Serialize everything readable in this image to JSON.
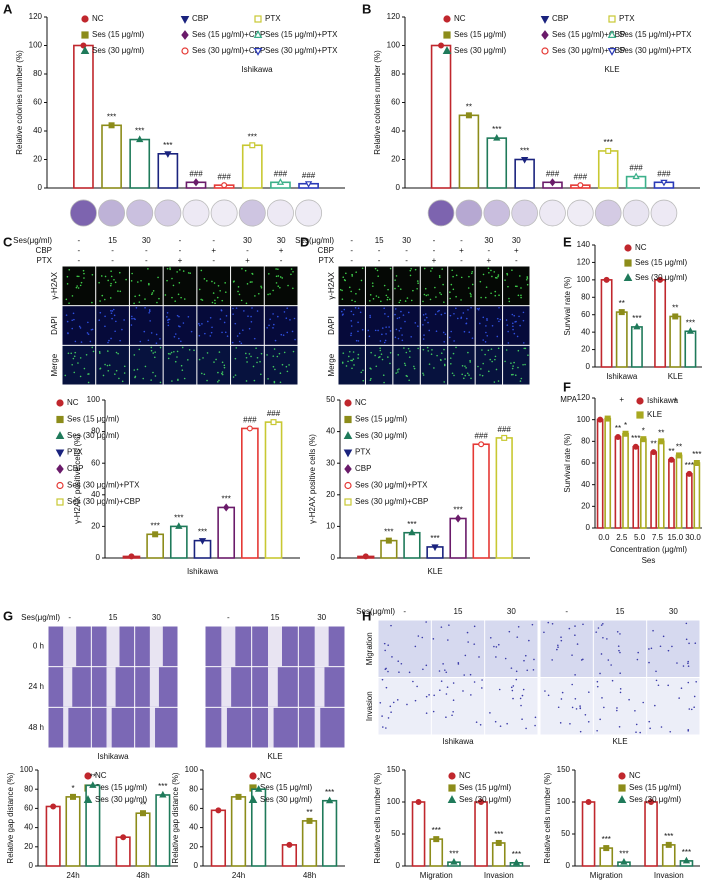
{
  "figure": {
    "panel_labels": [
      "A",
      "B",
      "C",
      "D",
      "E",
      "F",
      "G",
      "H"
    ],
    "images": [
      {
        "header_rows": [
          {
            "label": "Ses(μg/ml)",
            "values": [
              "-",
              "15",
              "30",
              "-",
              "-",
              "30",
              "30"
            ]
          },
          {
            "label": "CBP",
            "values": [
              "-",
              "-",
              "-",
              "-",
              "+",
              "-",
              "+"
            ]
          },
          {
            "label": "PTX",
            "values": [
              "-",
              "-",
              "-",
              "+",
              "-",
              "+",
              "-"
            ]
          }
        ],
        "row_labels": [
          "γ-H2AX",
          "DAPI",
          "Merge"
        ]
      },
      {
        "header_rows": [
          {
            "label": "Ses(μg/ml)",
            "values": [
              "-",
              "15",
              "30",
              "-",
              "-",
              "30",
              "30"
            ]
          },
          {
            "label": "CBP",
            "values": [
              "-",
              "-",
              "-",
              "-",
              "+",
              "-",
              "+"
            ]
          },
          {
            "label": "PTX",
            "values": [
              "-",
              "-",
              "-",
              "+",
              "-",
              "+",
              "-"
            ]
          }
        ],
        "row_labels": [
          "γ-H2AX",
          "DAPI",
          "Merge"
        ]
      },
      {
        "header_rows": [
          {
            "label": "Ses(μg/ml)",
            "values": [
              "-",
              "15",
              "30",
              "-",
              "15",
              "30"
            ]
          }
        ],
        "row_labels": [
          "0 h",
          "24 h",
          "48 h"
        ],
        "group_labels": [
          "Ishikawa",
          "KLE"
        ]
      },
      {
        "header_rows": [
          {
            "label": "Ses(μg/ml)",
            "values": [
              "-",
              "15",
              "30",
              "-",
              "15",
              "30"
            ]
          }
        ],
        "row_labels": [
          "Migration",
          "Invasion"
        ],
        "group_labels": [
          "Ishikawa",
          "KLE"
        ]
      }
    ]
  },
  "chart_data": [
    {
      "type": "bar",
      "ylabel": "Relative colonies number (%)",
      "subtitle": "Ishikawa",
      "ylim": [
        0,
        120
      ],
      "yticks": [
        0,
        20,
        40,
        60,
        80,
        100,
        120
      ],
      "series": [
        {
          "name": "NC",
          "color": "#c0272d",
          "marker": "circle",
          "values": [
            100
          ],
          "sig": [
            null
          ]
        },
        {
          "name": "Ses (15 μg/ml)",
          "color": "#8c8c1a",
          "marker": "square",
          "values": [
            44
          ],
          "sig": [
            "***"
          ]
        },
        {
          "name": "Ses (30 μg/ml)",
          "color": "#1f7a5a",
          "marker": "triangle",
          "values": [
            34
          ],
          "sig": [
            "***"
          ]
        },
        {
          "name": "CBP",
          "color": "#1a237e",
          "marker": "triangle-down",
          "values": [
            24
          ],
          "sig": [
            "***"
          ]
        },
        {
          "name": "Ses (15 μg/ml)+CBP",
          "color": "#6a1b6a",
          "marker": "diamond",
          "values": [
            4
          ],
          "sig": [
            "###"
          ]
        },
        {
          "name": "Ses (30 μg/ml)+CBP",
          "color": "#e53935",
          "marker": "open-circle",
          "values": [
            2
          ],
          "sig": [
            "###"
          ]
        },
        {
          "name": "PTX",
          "color": "#c8c832",
          "marker": "open-square",
          "values": [
            30
          ],
          "sig": [
            "***"
          ]
        },
        {
          "name": "Ses (15 μg/ml)+PTX",
          "color": "#3cb08a",
          "marker": "open-triangle",
          "values": [
            4
          ],
          "sig": [
            "###"
          ]
        },
        {
          "name": "Ses (30 μg/ml)+PTX",
          "color": "#2a3ab8",
          "marker": "open-triangle-down",
          "values": [
            3
          ],
          "sig": [
            "###"
          ]
        }
      ]
    },
    {
      "type": "bar",
      "ylabel": "Relative colonies number (%)",
      "subtitle": "KLE",
      "ylim": [
        0,
        120
      ],
      "yticks": [
        0,
        20,
        40,
        60,
        80,
        100,
        120
      ],
      "series": [
        {
          "name": "NC",
          "color": "#c0272d",
          "marker": "circle",
          "values": [
            100
          ],
          "sig": [
            null
          ]
        },
        {
          "name": "Ses (15 μg/ml)",
          "color": "#8c8c1a",
          "marker": "square",
          "values": [
            51
          ],
          "sig": [
            "**"
          ]
        },
        {
          "name": "Ses (30 μg/ml)",
          "color": "#1f7a5a",
          "marker": "triangle",
          "values": [
            35
          ],
          "sig": [
            "***"
          ]
        },
        {
          "name": "CBP",
          "color": "#1a237e",
          "marker": "triangle-down",
          "values": [
            20
          ],
          "sig": [
            "***"
          ]
        },
        {
          "name": "Ses (15 μg/ml)+CBP",
          "color": "#6a1b6a",
          "marker": "diamond",
          "values": [
            4
          ],
          "sig": [
            "###"
          ]
        },
        {
          "name": "Ses (30 μg/ml)+CBP",
          "color": "#e53935",
          "marker": "open-circle",
          "values": [
            2
          ],
          "sig": [
            "###"
          ]
        },
        {
          "name": "PTX",
          "color": "#c8c832",
          "marker": "open-square",
          "values": [
            26
          ],
          "sig": [
            "***"
          ]
        },
        {
          "name": "Ses (15 μg/ml)+PTX",
          "color": "#3cb08a",
          "marker": "open-triangle",
          "values": [
            8
          ],
          "sig": [
            "###"
          ]
        },
        {
          "name": "Ses (30 μg/ml)+PTX",
          "color": "#2a3ab8",
          "marker": "open-triangle-down",
          "values": [
            4
          ],
          "sig": [
            "###"
          ]
        }
      ]
    },
    {
      "type": "bar",
      "ylabel": "γ-H2AX positive cells (%)",
      "xlabel": "Ishikawa",
      "ylim": [
        0,
        100
      ],
      "yticks": [
        0,
        20,
        40,
        60,
        80,
        100
      ],
      "series": [
        {
          "name": "NC",
          "color": "#c0272d",
          "marker": "circle",
          "values": [
            1
          ],
          "sig": [
            null
          ]
        },
        {
          "name": "Ses (15 μg/ml)",
          "color": "#8c8c1a",
          "marker": "square",
          "values": [
            15
          ],
          "sig": [
            "***"
          ]
        },
        {
          "name": "Ses (30 μg/ml)",
          "color": "#1f7a5a",
          "marker": "triangle",
          "values": [
            20
          ],
          "sig": [
            "***"
          ]
        },
        {
          "name": "PTX",
          "color": "#1a237e",
          "marker": "triangle-down",
          "values": [
            11
          ],
          "sig": [
            "***"
          ]
        },
        {
          "name": "CBP",
          "color": "#6a1b6a",
          "marker": "diamond",
          "values": [
            32
          ],
          "sig": [
            "***"
          ]
        },
        {
          "name": "Ses (30 μg/ml)+PTX",
          "color": "#e53935",
          "marker": "open-circle",
          "values": [
            82
          ],
          "sig": [
            "###"
          ]
        },
        {
          "name": "Ses (30 μg/ml)+CBP",
          "color": "#c8c832",
          "marker": "open-square",
          "values": [
            86
          ],
          "sig": [
            "###"
          ]
        }
      ]
    },
    {
      "type": "bar",
      "ylabel": "γ-H2AX positive cells (%)",
      "xlabel": "KLE",
      "ylim": [
        0,
        50
      ],
      "yticks": [
        0,
        10,
        20,
        30,
        40,
        50
      ],
      "series": [
        {
          "name": "NC",
          "color": "#c0272d",
          "marker": "circle",
          "values": [
            0.5
          ],
          "sig": [
            null
          ]
        },
        {
          "name": "Ses (15 μg/ml)",
          "color": "#8c8c1a",
          "marker": "square",
          "values": [
            5.5
          ],
          "sig": [
            "***"
          ]
        },
        {
          "name": "Ses (30 μg/ml)",
          "color": "#1f7a5a",
          "marker": "triangle",
          "values": [
            8
          ],
          "sig": [
            "***"
          ]
        },
        {
          "name": "PTX",
          "color": "#1a237e",
          "marker": "triangle-down",
          "values": [
            3.5
          ],
          "sig": [
            "***"
          ]
        },
        {
          "name": "CBP",
          "color": "#6a1b6a",
          "marker": "diamond",
          "values": [
            12.5
          ],
          "sig": [
            "***"
          ]
        },
        {
          "name": "Ses (30 μg/ml)+PTX",
          "color": "#e53935",
          "marker": "open-circle",
          "values": [
            36
          ],
          "sig": [
            "###"
          ]
        },
        {
          "name": "Ses (30 μg/ml)+CBP",
          "color": "#c8c832",
          "marker": "open-square",
          "values": [
            38
          ],
          "sig": [
            "###"
          ]
        }
      ]
    },
    {
      "type": "bar",
      "ylabel": "Survival rate (%)",
      "categories": [
        "Ishikawa",
        "KLE"
      ],
      "row_label": "MPA",
      "row_values": [
        "+",
        "+"
      ],
      "ylim": [
        0,
        140
      ],
      "yticks": [
        0,
        20,
        40,
        60,
        80,
        100,
        120,
        140
      ],
      "series": [
        {
          "name": "NC",
          "color": "#c0272d",
          "marker": "circle",
          "values": [
            100,
            100
          ],
          "sig": [
            null,
            null
          ]
        },
        {
          "name": "Ses (15 μg/ml)",
          "color": "#8c8c1a",
          "marker": "square",
          "values": [
            63,
            58
          ],
          "sig": [
            "**",
            "**"
          ]
        },
        {
          "name": "Ses (30 μg/ml)",
          "color": "#1f7a5a",
          "marker": "triangle",
          "values": [
            46,
            41
          ],
          "sig": [
            "***",
            "***"
          ]
        }
      ]
    },
    {
      "type": "bar",
      "ylabel": "Survival rate (%)",
      "xlabel": "Concentration (μg/ml)",
      "xlabel_sub": "Ses",
      "categories": [
        "0.0",
        "2.5",
        "5.0",
        "7.5",
        "15.0",
        "30.0"
      ],
      "ylim": [
        0,
        120
      ],
      "yticks": [
        0,
        20,
        40,
        60,
        80,
        100,
        120
      ],
      "series": [
        {
          "name": "Ishikawa",
          "color": "#c0272d",
          "marker": "circle",
          "values": [
            100,
            84,
            75,
            70,
            63,
            50
          ],
          "sig": [
            null,
            "**",
            "***",
            "**",
            "**",
            "***"
          ]
        },
        {
          "name": "KLE",
          "color": "#a8a820",
          "marker": "square",
          "values": [
            101,
            87,
            82,
            80,
            67,
            60
          ],
          "sig": [
            null,
            "*",
            "*",
            "**",
            "**",
            "***"
          ]
        }
      ]
    },
    {
      "type": "bar",
      "ylabel": "Relative gap distance (%)",
      "categories": [
        "24h",
        "48h"
      ],
      "ylim": [
        0,
        100
      ],
      "yticks": [
        0,
        20,
        40,
        60,
        80,
        100
      ],
      "series": [
        {
          "name": "NC",
          "color": "#c0272d",
          "marker": "circle",
          "values": [
            62,
            30
          ],
          "sig": [
            null,
            null
          ]
        },
        {
          "name": "Ses (15 μg/ml)",
          "color": "#8c8c1a",
          "marker": "square",
          "values": [
            72,
            55
          ],
          "sig": [
            "*",
            "**"
          ]
        },
        {
          "name": "Ses (30 μg/ml)",
          "color": "#1f7a5a",
          "marker": "triangle",
          "values": [
            84,
            74
          ],
          "sig": [
            "**",
            "***"
          ]
        }
      ]
    },
    {
      "type": "bar",
      "ylabel": "Relative gap distance (%)",
      "categories": [
        "24h",
        "48h"
      ],
      "ylim": [
        0,
        100
      ],
      "yticks": [
        0,
        20,
        40,
        60,
        80,
        100
      ],
      "series": [
        {
          "name": "NC",
          "color": "#c0272d",
          "marker": "circle",
          "values": [
            58,
            22
          ],
          "sig": [
            null,
            null
          ]
        },
        {
          "name": "Ses (15 μg/ml)",
          "color": "#8c8c1a",
          "marker": "square",
          "values": [
            72,
            47
          ],
          "sig": [
            null,
            "**"
          ]
        },
        {
          "name": "Ses (30 μg/ml)",
          "color": "#1f7a5a",
          "marker": "triangle",
          "values": [
            80,
            68
          ],
          "sig": [
            "*",
            "***"
          ]
        }
      ]
    },
    {
      "type": "bar",
      "ylabel": "Relative cells number (%)",
      "categories": [
        "Migration",
        "Invasion"
      ],
      "ylim": [
        0,
        150
      ],
      "yticks": [
        0,
        50,
        100,
        150
      ],
      "series": [
        {
          "name": "NC",
          "color": "#c0272d",
          "marker": "circle",
          "values": [
            100,
            100
          ],
          "sig": [
            null,
            null
          ]
        },
        {
          "name": "Ses (15 μg/ml)",
          "color": "#8c8c1a",
          "marker": "square",
          "values": [
            42,
            36
          ],
          "sig": [
            "***",
            "***"
          ]
        },
        {
          "name": "Ses (30 μg/ml)",
          "color": "#1f7a5a",
          "marker": "triangle",
          "values": [
            6,
            5
          ],
          "sig": [
            "***",
            "***"
          ]
        }
      ]
    },
    {
      "type": "bar",
      "ylabel": "Relative cells number (%)",
      "categories": [
        "Migration",
        "Invasion"
      ],
      "ylim": [
        0,
        150
      ],
      "yticks": [
        0,
        50,
        100,
        150
      ],
      "series": [
        {
          "name": "NC",
          "color": "#c0272d",
          "marker": "circle",
          "values": [
            100,
            100
          ],
          "sig": [
            null,
            null
          ]
        },
        {
          "name": "Ses (15 μg/ml)",
          "color": "#8c8c1a",
          "marker": "square",
          "values": [
            28,
            33
          ],
          "sig": [
            "***",
            "***"
          ]
        },
        {
          "name": "Ses (30 μg/ml)",
          "color": "#1f7a5a",
          "marker": "triangle",
          "values": [
            6,
            8
          ],
          "sig": [
            "***",
            "***"
          ]
        }
      ]
    }
  ]
}
